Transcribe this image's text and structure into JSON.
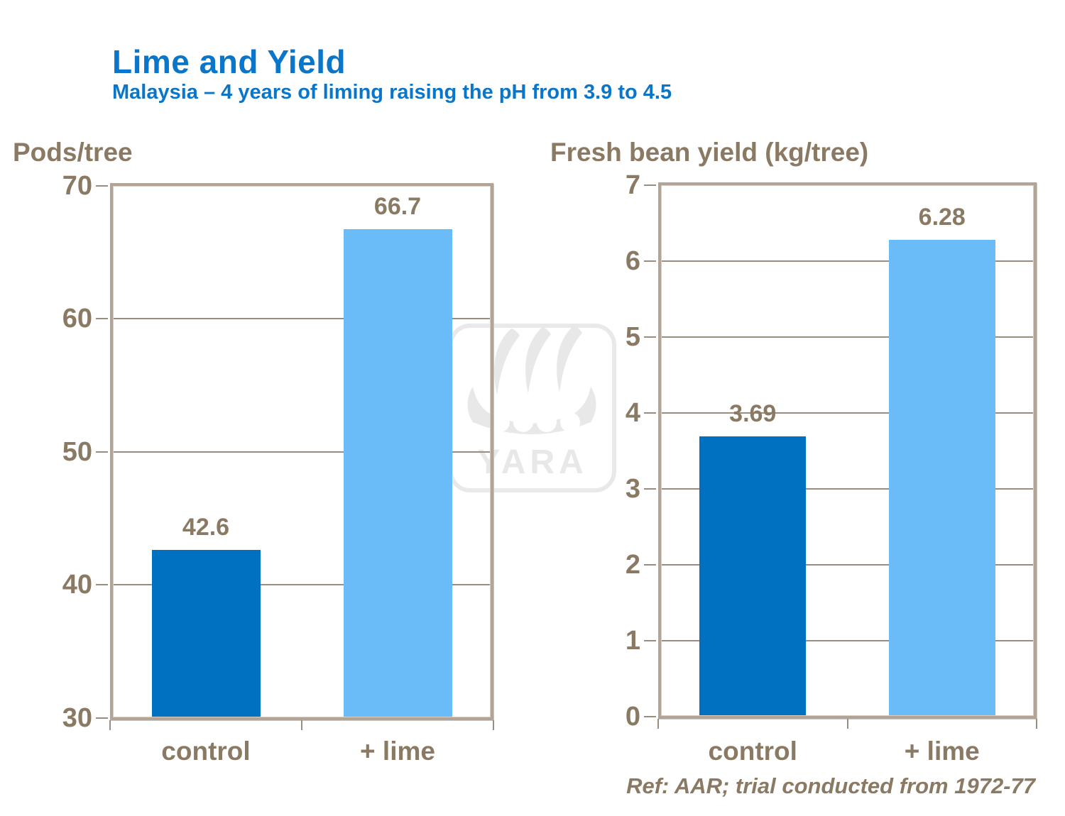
{
  "page": {
    "title": "Lime and Yield",
    "subtitle": "Malaysia – 4 years of liming raising the pH from 3.9 to 4.5",
    "ref_note": "Ref: AAR; trial conducted from 1972-77",
    "watermark_text": "YARA"
  },
  "colors": {
    "title_blue": "#0a76ca",
    "label_brown": "#8a7a64",
    "frame": "#b2a496",
    "gridline": "#9a8d7d",
    "watermark_gray": "#e8e8e8"
  },
  "chart_data": [
    {
      "type": "bar",
      "title": "Pods/tree",
      "categories": [
        "control",
        "+ lime"
      ],
      "values": [
        42.6,
        66.7
      ],
      "value_labels": [
        "42.6",
        "66.7"
      ],
      "bar_colors": [
        "#0070c0",
        "#6abcf9"
      ],
      "ylim": [
        30,
        70
      ],
      "yticks": [
        30,
        40,
        50,
        60,
        70
      ],
      "grid": true,
      "legend": false,
      "xlabel": "",
      "ylabel": "Pods/tree"
    },
    {
      "type": "bar",
      "title": "Fresh bean yield (kg/tree)",
      "categories": [
        "control",
        "+ lime"
      ],
      "values": [
        3.69,
        6.28
      ],
      "value_labels": [
        "3.69",
        "6.28"
      ],
      "bar_colors": [
        "#0070c0",
        "#6abcf9"
      ],
      "ylim": [
        0,
        7
      ],
      "yticks": [
        0,
        1,
        2,
        3,
        4,
        5,
        6,
        7
      ],
      "grid": true,
      "legend": false,
      "xlabel": "",
      "ylabel": "Fresh bean yield (kg/tree)"
    }
  ]
}
